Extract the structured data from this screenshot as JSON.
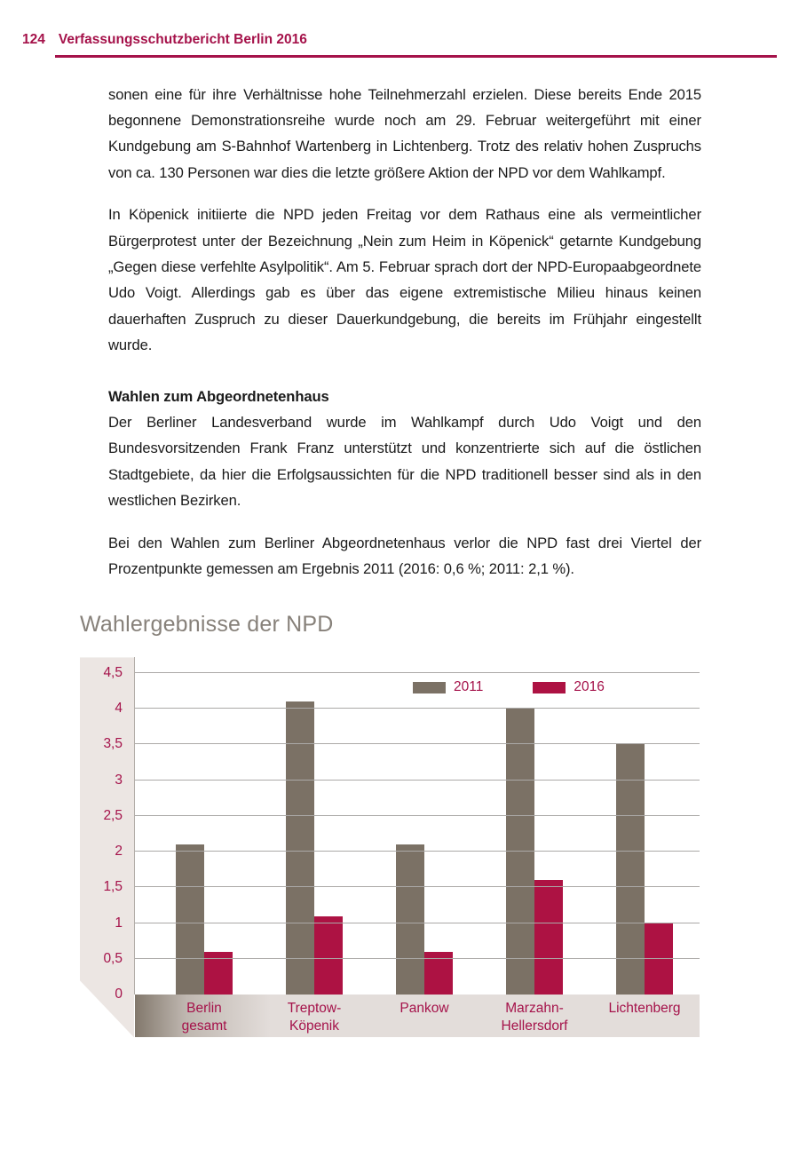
{
  "page": {
    "page_number": "124",
    "report_title": "Verfassungsschutzbericht Berlin 2016"
  },
  "body": {
    "paragraph1": "sonen eine für ihre Verhältnisse hohe Teilnehmerzahl erzielen. Diese bereits Ende 2015 begonnene Demonstrationsreihe wurde noch am 29. Februar weitergeführt mit einer Kundgebung am S-Bahnhof Wartenberg in Lichtenberg. Trotz des relativ hohen Zuspruchs von ca. 130 Personen war dies die letzte größere Aktion der NPD vor dem Wahlkampf.",
    "paragraph2": "In Köpenick initiierte die NPD jeden Freitag vor dem Rathaus eine als vermeintlicher Bürgerprotest unter der Bezeichnung „Nein zum Heim in Köpenick“ getarnte Kundgebung „Gegen diese verfehlte Asylpolitik“. Am 5. Februar sprach dort der NPD-Europaabgeordnete Udo Voigt. Allerdings gab es über das eigene extremistische Milieu hinaus keinen dauerhaften Zuspruch zu dieser Dauerkundgebung, die bereits im Frühjahr eingestellt wurde.",
    "section_heading": "Wahlen zum Abgeordnetenhaus",
    "paragraph3": "Der Berliner Landesverband wurde im Wahlkampf durch Udo Voigt und den Bundesvorsitzenden Frank Franz unterstützt und konzentrierte sich auf die östlichen Stadtgebiete, da hier die Erfolgsaussichten für die NPD traditionell besser sind als in den westlichen Bezirken.",
    "paragraph4": "Bei den Wahlen zum Berliner Abgeordnetenhaus verlor die NPD fast drei Viertel der Prozentpunkte gemessen am Ergebnis 2011 (2016: 0,6 %; 2011: 2,1 %)."
  },
  "chart_data": {
    "type": "bar",
    "title": "Wahlergebnisse der NPD",
    "categories": [
      "Berlin gesamt",
      "Treptow-Köpenik",
      "Pankow",
      "Marzahn-Hellersdorf",
      "Lichtenberg"
    ],
    "category_labels_display": [
      "Berlin\ngesamt",
      "Treptow-\nKöpenik",
      "Pankow",
      "Marzahn-\nHellersdorf",
      "Lichtenberg"
    ],
    "series": [
      {
        "name": "2011",
        "color": "#7B7165",
        "values": [
          2.1,
          4.1,
          2.1,
          4.0,
          3.5
        ]
      },
      {
        "name": "2016",
        "color": "#AD1243",
        "values": [
          0.6,
          1.1,
          0.6,
          1.6,
          1.0
        ]
      }
    ],
    "ylabel": "",
    "xlabel": "",
    "ylim": [
      0,
      4.5
    ],
    "yticks": [
      {
        "v": 0,
        "label": "0"
      },
      {
        "v": 0.5,
        "label": "0,5"
      },
      {
        "v": 1,
        "label": "1"
      },
      {
        "v": 1.5,
        "label": "1,5"
      },
      {
        "v": 2,
        "label": "2"
      },
      {
        "v": 2.5,
        "label": "2,5"
      },
      {
        "v": 3,
        "label": "3"
      },
      {
        "v": 3.5,
        "label": "3,5"
      },
      {
        "v": 4,
        "label": "4"
      },
      {
        "v": 4.5,
        "label": "4,5"
      }
    ],
    "grid": true,
    "legend_position": "top-center"
  },
  "colors": {
    "accent_crimson": "#A5124A",
    "bar_2011_gray": "#7B7165",
    "bar_2016_crimson": "#AD1243",
    "gridline": "#ABA9A7",
    "axis_strip_bg": "#ECE6E3",
    "band_dark": "#82786C",
    "band_light": "#E3DDDA",
    "chart_title_gray": "#87817A"
  }
}
